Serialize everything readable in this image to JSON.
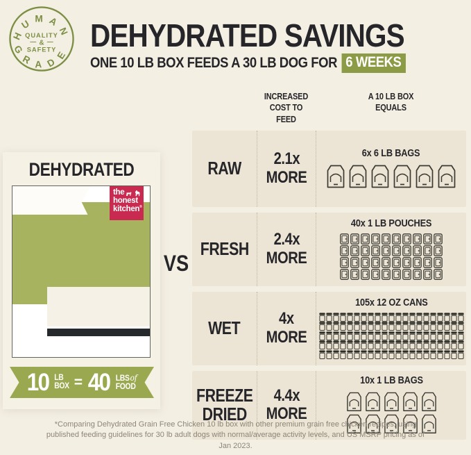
{
  "colors": {
    "page_bg": "#f4efe3",
    "row_bg": "#ece4d4",
    "box_green": "#a7b35f",
    "accent_green": "#8c9b45",
    "ribbon_green": "#9aa84f",
    "badge_olive": "#7d8f44",
    "logo_red": "#c92a50",
    "ink": "#26262a",
    "footnote_gray": "#8c8578"
  },
  "badge": {
    "arc_top": "HUMAN",
    "arc_bottom": "GRADE",
    "center_top": "QUALITY",
    "center_mid": "&",
    "center_bottom": "SAFETY"
  },
  "header": {
    "title": "DEHYDRATED SAVINGS",
    "subtitle": "ONE 10 LB BOX FEEDS A 30 LB DOG FOR",
    "highlight": "6 WEEKS"
  },
  "left_panel": {
    "title": "DEHYDRATED",
    "logo": {
      "word1": "the",
      "word2": "honest",
      "word3": "kitchen",
      "reg": "®"
    },
    "ribbon": {
      "qty1": "10",
      "unit1_top": "LB",
      "unit1_bottom": "BOX",
      "equals": "=",
      "qty2": "40",
      "unit2_top": "LBS",
      "of": "of",
      "unit2_bottom": "FOOD"
    }
  },
  "vs": "VS",
  "comparison": {
    "header_col_cost": {
      "line1": "INCREASED",
      "line2": "COST TO FEED"
    },
    "header_col_equals": {
      "line1": "A 10 LB BOX",
      "line2": "EQUALS"
    },
    "rows": [
      {
        "label_lines": [
          "RAW"
        ],
        "cost": "2.1x",
        "more": "MORE",
        "equals_label": "6x 6 LB BAGS",
        "icon": "bag",
        "count": 6,
        "per_row": 6
      },
      {
        "label_lines": [
          "FRESH"
        ],
        "cost": "2.4x",
        "more": "MORE",
        "equals_label": "40x 1 LB POUCHES",
        "icon": "pouch",
        "count": 40,
        "per_row": 10
      },
      {
        "label_lines": [
          "WET"
        ],
        "cost": "4x",
        "more": "MORE",
        "equals_label": "105x 12 OZ CANS",
        "icon": "can",
        "count": 105,
        "per_row": 21
      },
      {
        "label_lines": [
          "FREEZE",
          "DRIED"
        ],
        "cost": "4.4x",
        "more": "MORE",
        "equals_label": "10x 1 LB BAGS",
        "icon": "bag",
        "count": 10,
        "per_row": 5
      }
    ]
  },
  "footnote": "*Comparing Dehydrated Grain Free Chicken 10 lb box with other premium grain free chicken recipes, using published feeding guidelines for 30 lb adult dogs with normal/average activity levels, and US MSRP pricing as of Jan 2023."
}
